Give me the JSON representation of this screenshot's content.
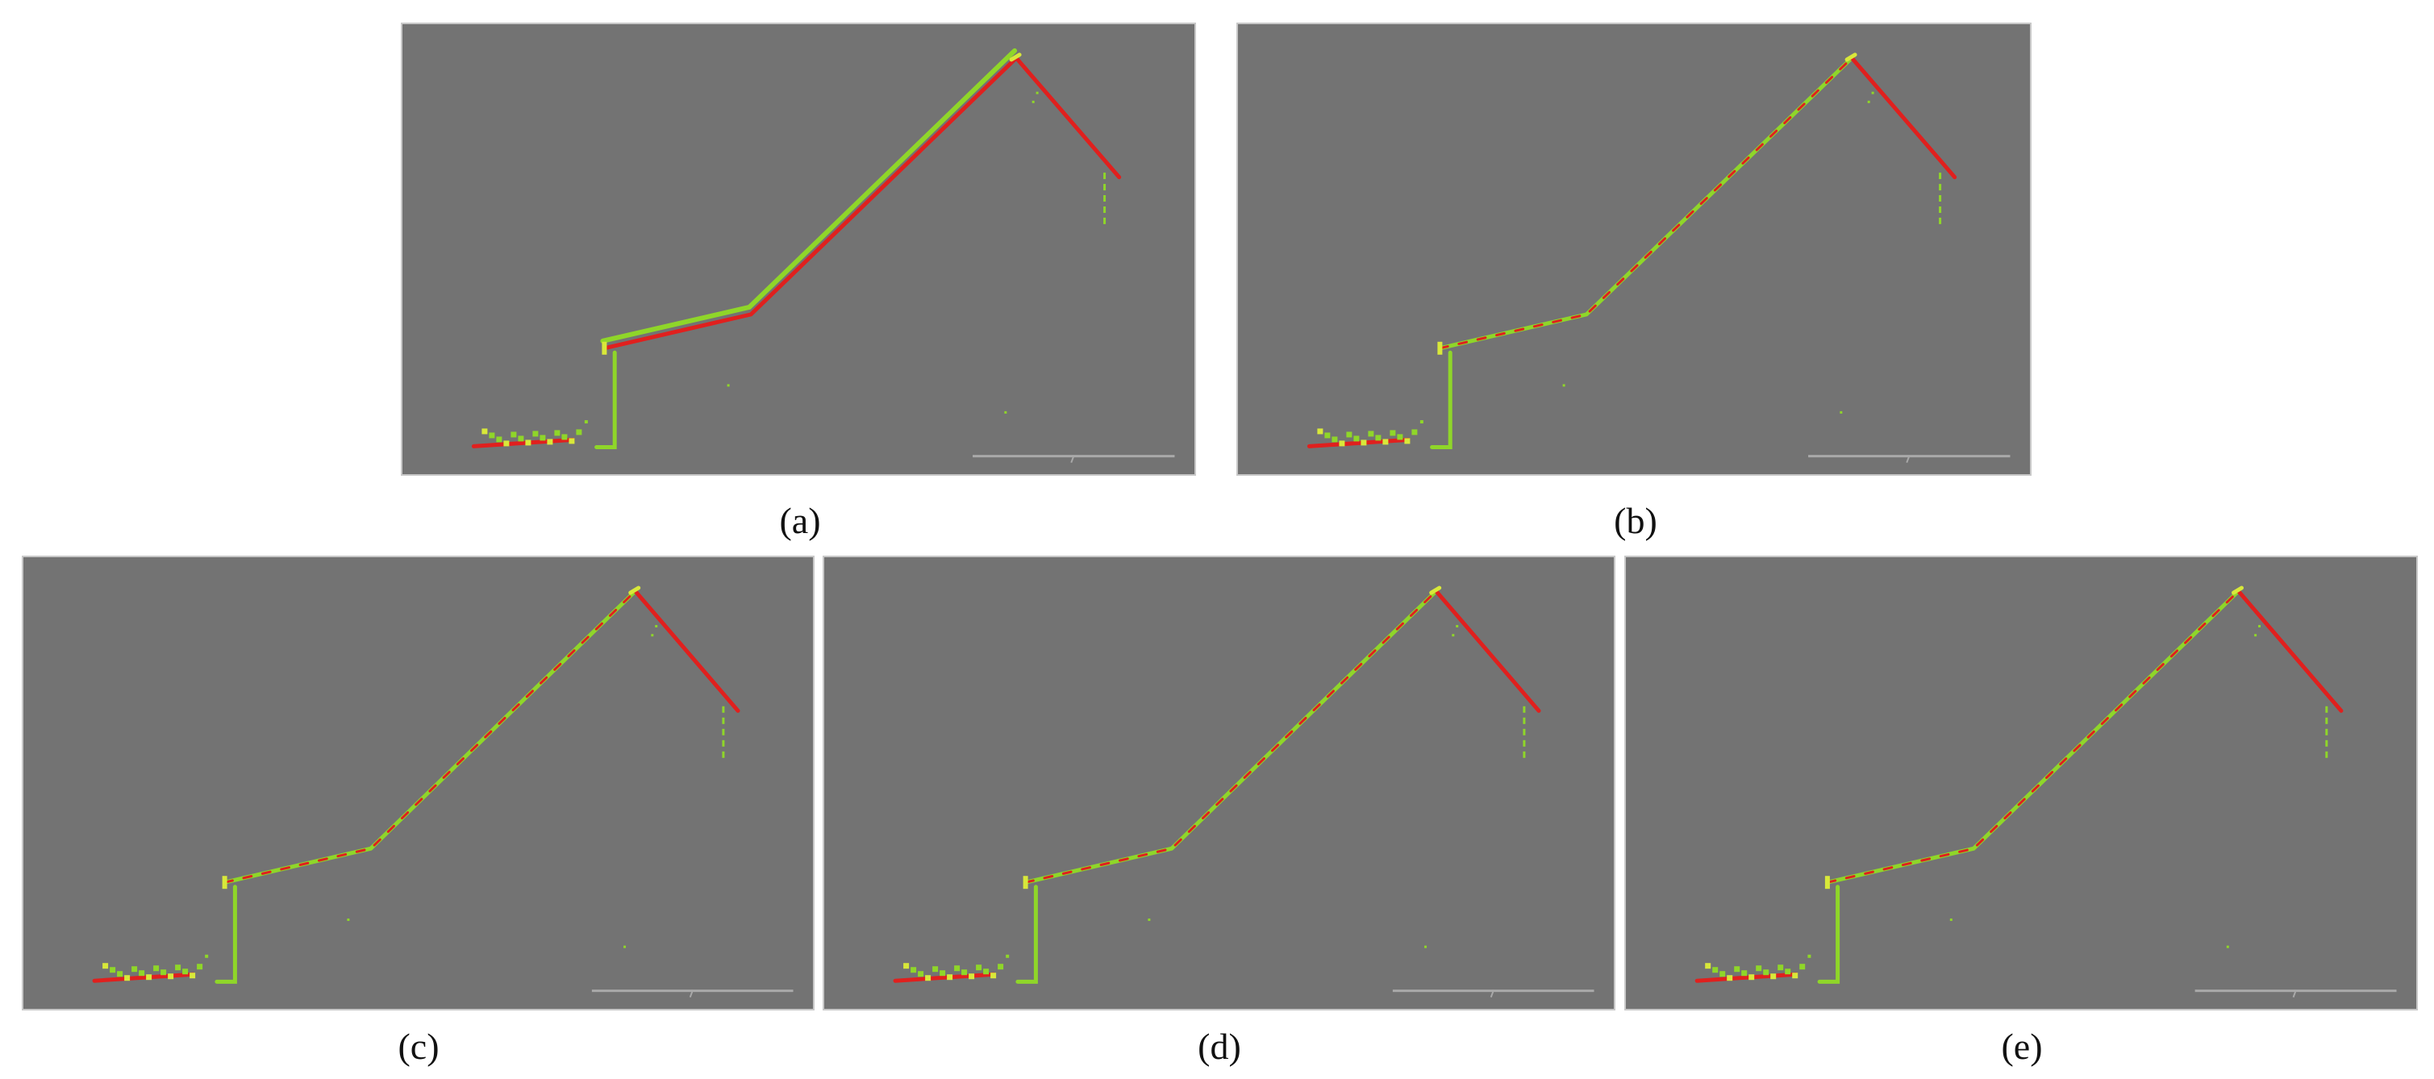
{
  "figure": {
    "panels": [
      {
        "id": "a",
        "caption": "(a)",
        "alignment": "offset"
      },
      {
        "id": "b",
        "caption": "(b)",
        "alignment": "aligned"
      },
      {
        "id": "c",
        "caption": "(c)",
        "alignment": "aligned"
      },
      {
        "id": "d",
        "caption": "(d)",
        "alignment": "aligned"
      },
      {
        "id": "e",
        "caption": "(e)",
        "alignment": "aligned"
      }
    ],
    "colors": {
      "background": "#737373",
      "reference_cloud": "#e0201e",
      "source_cloud": "#8fd629",
      "scale_bar": "#a9a9a9"
    }
  }
}
